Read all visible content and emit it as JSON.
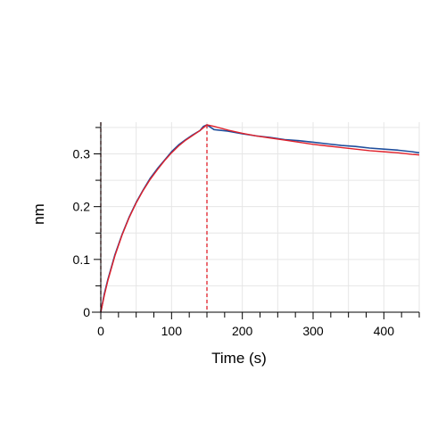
{
  "chart_data": {
    "type": "line",
    "xlabel": "Time (s)",
    "ylabel": "nm",
    "xlim": [
      0,
      450
    ],
    "ylim": [
      0,
      0.36
    ],
    "x_ticks": [
      0,
      100,
      200,
      300,
      400
    ],
    "y_ticks": [
      0,
      0.1,
      0.2,
      0.3
    ],
    "x_tick_labels": [
      "0",
      "100",
      "200",
      "300",
      "400"
    ],
    "y_tick_labels": [
      "0",
      "0.1",
      "0.2",
      "0.3"
    ],
    "grid": true,
    "vertical_markers": [
      {
        "x": 0,
        "style": "dashed",
        "color": "#7a1a1a"
      },
      {
        "x": 150,
        "style": "dashed",
        "color": "#e0202a"
      }
    ],
    "series": [
      {
        "role": "measured",
        "color": "#1f4e9c",
        "x": [
          0,
          5,
          10,
          20,
          30,
          40,
          50,
          60,
          70,
          80,
          90,
          100,
          110,
          120,
          130,
          140,
          145,
          150,
          160,
          180,
          200,
          220,
          240,
          260,
          280,
          300,
          320,
          340,
          360,
          380,
          400,
          420,
          440,
          450
        ],
        "y": [
          0,
          0.035,
          0.062,
          0.109,
          0.147,
          0.18,
          0.208,
          0.232,
          0.254,
          0.272,
          0.288,
          0.304,
          0.317,
          0.327,
          0.336,
          0.344,
          0.352,
          0.355,
          0.346,
          0.343,
          0.338,
          0.334,
          0.331,
          0.327,
          0.325,
          0.322,
          0.319,
          0.316,
          0.314,
          0.311,
          0.309,
          0.307,
          0.304,
          0.302
        ]
      },
      {
        "role": "fit",
        "color": "#e0202a",
        "x": [
          0,
          5,
          10,
          20,
          30,
          40,
          50,
          60,
          70,
          80,
          90,
          100,
          110,
          120,
          130,
          140,
          150,
          160,
          180,
          200,
          220,
          240,
          260,
          280,
          300,
          320,
          340,
          360,
          380,
          400,
          420,
          440,
          450
        ],
        "y": [
          0,
          0.032,
          0.06,
          0.107,
          0.146,
          0.179,
          0.207,
          0.231,
          0.252,
          0.27,
          0.287,
          0.302,
          0.315,
          0.326,
          0.335,
          0.344,
          0.355,
          0.352,
          0.345,
          0.339,
          0.334,
          0.33,
          0.326,
          0.322,
          0.318,
          0.315,
          0.312,
          0.309,
          0.306,
          0.304,
          0.302,
          0.299,
          0.298
        ]
      }
    ]
  }
}
